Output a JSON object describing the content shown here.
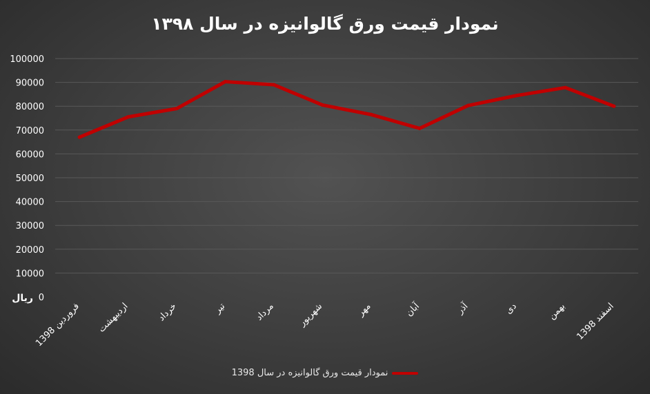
{
  "chart_data": {
    "type": "line",
    "title": "نمودار قیمت ورق گالوانیزه در سال ۱۳۹۸",
    "xlabel": "",
    "ylabel": "",
    "y_unit_label": "ریال",
    "categories": [
      "فروردین 1398",
      "اردیبهشت",
      "خرداد",
      "تیر",
      "مرداد",
      "شهریور",
      "مهر",
      "آبان",
      "آذر",
      "دی",
      "بهمن",
      "اسفند 1398"
    ],
    "series": [
      {
        "name": "نمودار قیمت ورق گالوانیزه در سال 1398",
        "values": [
          67000,
          75500,
          79000,
          90300,
          89000,
          80500,
          76500,
          70700,
          80300,
          84500,
          87800,
          80000
        ],
        "color": "#c00000"
      }
    ],
    "ylim": [
      0,
      100000
    ],
    "yticks": [
      "100000",
      "90000",
      "80000",
      "70000",
      "60000",
      "50000",
      "40000",
      "30000",
      "20000",
      "10000",
      "0"
    ],
    "grid": true,
    "legend_position": "bottom",
    "background": "#3d3d3d",
    "gridline_color": "#595959"
  }
}
